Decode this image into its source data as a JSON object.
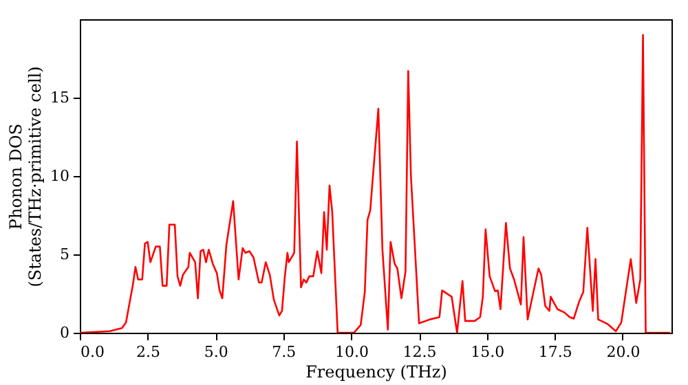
{
  "chart_data": {
    "type": "line",
    "xlabel": "Frequency (THz)",
    "ylabel": "Phonon DOS\n(States/THz·primitive cell)",
    "xlim": [
      0,
      21.8
    ],
    "ylim": [
      0,
      20
    ],
    "xticks": [
      {
        "value": 0,
        "label": "0.0"
      },
      {
        "value": 2.5,
        "label": "2.5"
      },
      {
        "value": 5,
        "label": "5.0"
      },
      {
        "value": 7.5,
        "label": "7.5"
      },
      {
        "value": 10,
        "label": "10.0"
      },
      {
        "value": 12.5,
        "label": "12.5"
      },
      {
        "value": 15,
        "label": "15.0"
      },
      {
        "value": 17.5,
        "label": "17.5"
      },
      {
        "value": 20,
        "label": "20.0"
      }
    ],
    "yticks": [
      0,
      5,
      10,
      15
    ],
    "grid": false,
    "marker": "none",
    "line_style": "solid",
    "series": [
      {
        "color": "#ff0000",
        "x": [
          0,
          1.1,
          1.55,
          1.7,
          1.95,
          2.05,
          2.15,
          2.3,
          2.4,
          2.5,
          2.6,
          2.8,
          2.95,
          3.05,
          3.2,
          3.3,
          3.5,
          3.6,
          3.7,
          3.8,
          4.0,
          4.05,
          4.25,
          4.35,
          4.45,
          4.55,
          4.65,
          4.75,
          4.9,
          5.05,
          5.15,
          5.25,
          5.4,
          5.65,
          5.85,
          6.0,
          6.1,
          6.25,
          6.4,
          6.6,
          6.7,
          6.85,
          7.0,
          7.15,
          7.35,
          7.45,
          7.55,
          7.65,
          7.7,
          7.9,
          8.0,
          8.15,
          8.25,
          8.35,
          8.45,
          8.6,
          8.75,
          8.9,
          9.0,
          9.1,
          9.2,
          9.3,
          9.5,
          10.1,
          10.35,
          10.5,
          10.6,
          10.7,
          11.0,
          11.15,
          11.35,
          11.45,
          11.6,
          11.7,
          11.85,
          12.0,
          12.1,
          12.2,
          12.5,
          12.9,
          13.25,
          13.35,
          13.7,
          13.9,
          14.1,
          14.2,
          14.55,
          14.75,
          14.85,
          14.95,
          15.1,
          15.3,
          15.4,
          15.5,
          15.7,
          15.85,
          16.0,
          16.25,
          16.35,
          16.5,
          16.7,
          16.9,
          17.0,
          17.15,
          17.3,
          17.35,
          17.6,
          17.85,
          18.05,
          18.2,
          18.4,
          18.55,
          18.7,
          18.9,
          19.0,
          19.1,
          19.45,
          19.75,
          19.95,
          20.3,
          20.5,
          20.65,
          20.75,
          20.85,
          21.75
        ],
        "values": [
          0,
          0.1,
          0.3,
          0.65,
          3.0,
          4.2,
          3.4,
          3.4,
          5.7,
          5.8,
          4.5,
          5.5,
          5.5,
          3.0,
          3.0,
          6.9,
          6.9,
          3.6,
          3.0,
          3.7,
          4.2,
          5.1,
          4.5,
          2.2,
          5.2,
          5.3,
          4.5,
          5.3,
          4.4,
          3.8,
          2.7,
          2.2,
          5.6,
          8.4,
          3.4,
          5.4,
          5.1,
          5.2,
          4.8,
          3.2,
          3.2,
          4.5,
          3.7,
          2.1,
          1.1,
          1.4,
          3.5,
          5.1,
          4.5,
          5.1,
          12.2,
          2.9,
          3.4,
          3.2,
          3.6,
          3.6,
          5.2,
          3.8,
          7.7,
          5.3,
          9.4,
          7.7,
          0,
          0,
          0.5,
          2.6,
          7.2,
          7.8,
          14.3,
          5.3,
          0.2,
          5.8,
          4.4,
          4.1,
          2.2,
          3.9,
          16.7,
          10.0,
          0.6,
          0.85,
          1.0,
          2.7,
          2.3,
          0,
          3.3,
          0.75,
          0.75,
          1.0,
          2.3,
          6.6,
          3.6,
          2.65,
          2.7,
          1.5,
          7.0,
          4.1,
          3.4,
          1.8,
          6.1,
          0.85,
          2.5,
          4.1,
          3.7,
          1.7,
          1.4,
          2.3,
          1.5,
          1.3,
          1.0,
          0.9,
          2.0,
          2.6,
          6.7,
          1.4,
          4.7,
          0.85,
          0.55,
          0.1,
          0.65,
          4.7,
          1.9,
          3.4,
          19.0,
          0,
          0
        ]
      }
    ]
  }
}
